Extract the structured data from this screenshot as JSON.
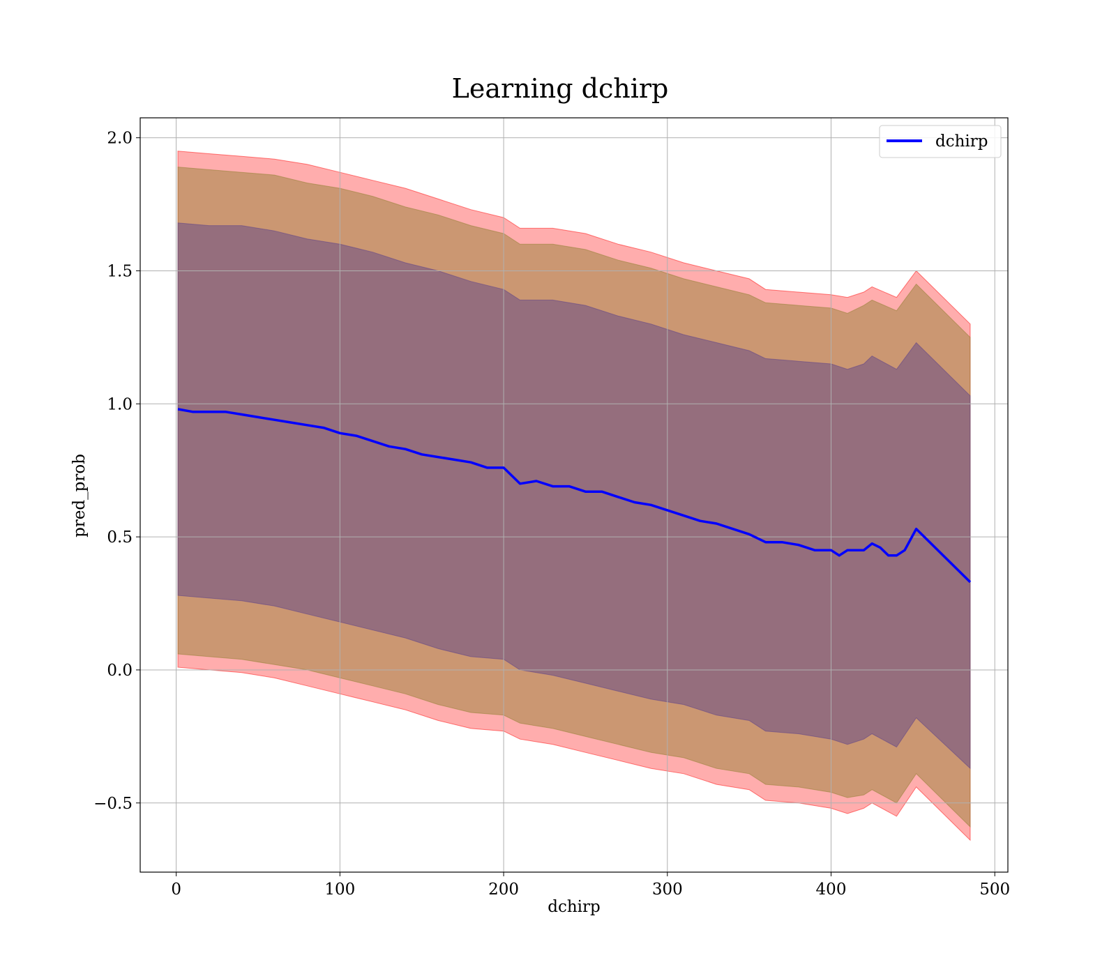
{
  "chart_data": {
    "type": "line",
    "title": "Learning dchirp",
    "xlabel": "dchirp",
    "ylabel": "pred_prob",
    "xlim": [
      -22,
      508
    ],
    "ylim": [
      -0.76,
      2.075
    ],
    "xticks": [
      0,
      100,
      200,
      300,
      400,
      500
    ],
    "yticks": [
      -0.5,
      0.0,
      0.5,
      1.0,
      1.5,
      2.0
    ],
    "xtick_labels": [
      "0",
      "100",
      "200",
      "300",
      "400",
      "500"
    ],
    "ytick_labels": [
      "−0.5",
      "0.0",
      "0.5",
      "1.0",
      "1.5",
      "2.0"
    ],
    "grid": true,
    "legend": {
      "location": "upper right",
      "entries": [
        "dchirp"
      ]
    },
    "colors": {
      "line": "#0000ff",
      "band_outer": "#ff0000",
      "band_mid": "#8b7d2b",
      "band_inner": "#553c8b",
      "grid": "#b0b0b0"
    },
    "series": [
      {
        "name": "dchirp",
        "x": [
          1,
          10,
          20,
          30,
          40,
          50,
          60,
          70,
          80,
          90,
          100,
          110,
          120,
          130,
          140,
          150,
          160,
          170,
          180,
          190,
          200,
          210,
          220,
          230,
          240,
          250,
          260,
          270,
          280,
          290,
          300,
          310,
          320,
          330,
          340,
          350,
          360,
          370,
          380,
          390,
          400,
          405,
          410,
          420,
          425,
          430,
          435,
          440,
          445,
          452,
          485
        ],
        "y": [
          0.98,
          0.97,
          0.97,
          0.97,
          0.96,
          0.95,
          0.94,
          0.93,
          0.92,
          0.91,
          0.89,
          0.88,
          0.86,
          0.84,
          0.83,
          0.81,
          0.8,
          0.79,
          0.78,
          0.76,
          0.76,
          0.7,
          0.71,
          0.69,
          0.69,
          0.67,
          0.67,
          0.65,
          0.63,
          0.62,
          0.6,
          0.58,
          0.56,
          0.55,
          0.53,
          0.51,
          0.48,
          0.48,
          0.47,
          0.45,
          0.45,
          0.43,
          0.45,
          0.45,
          0.475,
          0.46,
          0.43,
          0.43,
          0.45,
          0.53,
          0.33
        ]
      }
    ],
    "bands": [
      {
        "name": "outer",
        "x": [
          1,
          20,
          40,
          60,
          80,
          100,
          120,
          140,
          160,
          180,
          200,
          210,
          230,
          250,
          270,
          290,
          310,
          330,
          350,
          360,
          380,
          400,
          410,
          420,
          425,
          440,
          452,
          485
        ],
        "upper": [
          1.95,
          1.94,
          1.93,
          1.92,
          1.9,
          1.87,
          1.84,
          1.81,
          1.77,
          1.73,
          1.7,
          1.66,
          1.66,
          1.64,
          1.6,
          1.57,
          1.53,
          1.5,
          1.47,
          1.43,
          1.42,
          1.41,
          1.4,
          1.42,
          1.44,
          1.4,
          1.5,
          1.3
        ],
        "lower": [
          0.01,
          0.0,
          -0.01,
          -0.03,
          -0.06,
          -0.09,
          -0.12,
          -0.15,
          -0.19,
          -0.22,
          -0.23,
          -0.26,
          -0.28,
          -0.31,
          -0.34,
          -0.37,
          -0.39,
          -0.43,
          -0.45,
          -0.49,
          -0.5,
          -0.52,
          -0.54,
          -0.52,
          -0.5,
          -0.55,
          -0.44,
          -0.64
        ]
      },
      {
        "name": "mid",
        "x": [
          1,
          20,
          40,
          60,
          80,
          100,
          120,
          140,
          160,
          180,
          200,
          210,
          230,
          250,
          270,
          290,
          310,
          330,
          350,
          360,
          380,
          400,
          410,
          420,
          425,
          440,
          452,
          485
        ],
        "upper": [
          1.89,
          1.88,
          1.87,
          1.86,
          1.83,
          1.81,
          1.78,
          1.74,
          1.71,
          1.67,
          1.64,
          1.6,
          1.6,
          1.58,
          1.54,
          1.51,
          1.47,
          1.44,
          1.41,
          1.38,
          1.37,
          1.36,
          1.34,
          1.37,
          1.39,
          1.35,
          1.45,
          1.25
        ],
        "lower": [
          0.06,
          0.05,
          0.04,
          0.02,
          0.0,
          -0.03,
          -0.06,
          -0.09,
          -0.13,
          -0.16,
          -0.17,
          -0.2,
          -0.22,
          -0.25,
          -0.28,
          -0.31,
          -0.33,
          -0.37,
          -0.39,
          -0.43,
          -0.44,
          -0.46,
          -0.48,
          -0.47,
          -0.45,
          -0.5,
          -0.39,
          -0.59
        ]
      },
      {
        "name": "inner",
        "x": [
          1,
          20,
          40,
          60,
          80,
          100,
          120,
          140,
          160,
          180,
          200,
          210,
          230,
          250,
          270,
          290,
          310,
          330,
          350,
          360,
          380,
          400,
          410,
          420,
          425,
          440,
          452,
          485
        ],
        "upper": [
          1.68,
          1.67,
          1.67,
          1.65,
          1.62,
          1.6,
          1.57,
          1.53,
          1.5,
          1.46,
          1.43,
          1.39,
          1.39,
          1.37,
          1.33,
          1.3,
          1.26,
          1.23,
          1.2,
          1.17,
          1.16,
          1.15,
          1.13,
          1.15,
          1.18,
          1.13,
          1.23,
          1.03
        ],
        "lower": [
          0.28,
          0.27,
          0.26,
          0.24,
          0.21,
          0.18,
          0.15,
          0.12,
          0.08,
          0.05,
          0.04,
          0.0,
          -0.02,
          -0.05,
          -0.08,
          -0.11,
          -0.13,
          -0.17,
          -0.19,
          -0.23,
          -0.24,
          -0.26,
          -0.28,
          -0.26,
          -0.24,
          -0.29,
          -0.18,
          -0.37
        ]
      }
    ]
  }
}
